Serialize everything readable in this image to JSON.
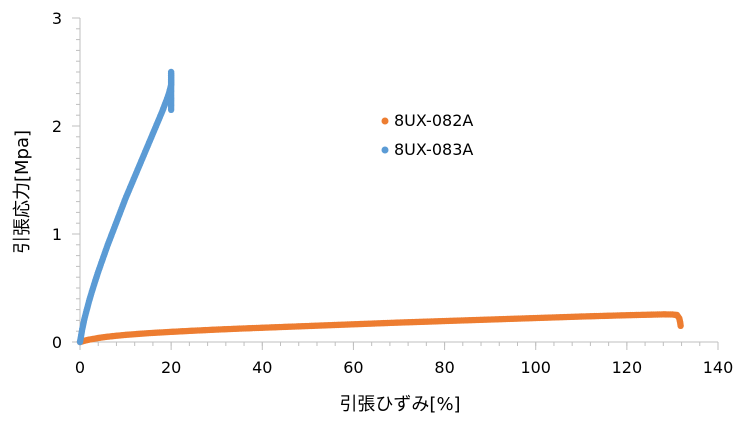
{
  "chart_data": {
    "type": "scatter",
    "title": "",
    "xlabel": "引張ひずみ[%]",
    "ylabel": "引張応力[Mpa]",
    "xlim": [
      0,
      140
    ],
    "ylim": [
      0,
      3
    ],
    "xticks": [
      0,
      20,
      40,
      60,
      80,
      100,
      120,
      140
    ],
    "xtick_labels": [
      "0",
      "20",
      "40",
      "60",
      "80",
      "100",
      "120",
      "140"
    ],
    "yticks": [
      0,
      1,
      2,
      3
    ],
    "ytick_labels": [
      "0",
      "1",
      "2",
      "3"
    ],
    "grid": false,
    "legend_position": "center",
    "series": [
      {
        "name": "8UX-082A",
        "color": "#ED7D31",
        "points": [
          [
            0,
            0
          ],
          [
            1,
            0.012
          ],
          [
            2,
            0.022
          ],
          [
            4,
            0.037
          ],
          [
            6,
            0.049
          ],
          [
            8,
            0.058
          ],
          [
            10,
            0.066
          ],
          [
            15,
            0.082
          ],
          [
            20,
            0.094
          ],
          [
            25,
            0.105
          ],
          [
            30,
            0.115
          ],
          [
            35,
            0.124
          ],
          [
            40,
            0.132
          ],
          [
            45,
            0.14
          ],
          [
            50,
            0.148
          ],
          [
            55,
            0.156
          ],
          [
            60,
            0.164
          ],
          [
            65,
            0.172
          ],
          [
            70,
            0.18
          ],
          [
            75,
            0.187
          ],
          [
            80,
            0.194
          ],
          [
            85,
            0.201
          ],
          [
            90,
            0.208
          ],
          [
            95,
            0.215
          ],
          [
            100,
            0.222
          ],
          [
            105,
            0.229
          ],
          [
            110,
            0.236
          ],
          [
            115,
            0.242
          ],
          [
            120,
            0.248
          ],
          [
            125,
            0.253
          ],
          [
            128,
            0.256
          ],
          [
            130,
            0.255
          ],
          [
            131,
            0.25
          ],
          [
            131.5,
            0.22
          ],
          [
            131.7,
            0.18
          ],
          [
            131.8,
            0.15
          ]
        ]
      },
      {
        "name": "8UX-083A",
        "color": "#5B9BD5",
        "points": [
          [
            0,
            0
          ],
          [
            0.5,
            0.12
          ],
          [
            1,
            0.22
          ],
          [
            2,
            0.38
          ],
          [
            3,
            0.52
          ],
          [
            4,
            0.65
          ],
          [
            5,
            0.77
          ],
          [
            6,
            0.89
          ],
          [
            7,
            1.0
          ],
          [
            8,
            1.11
          ],
          [
            9,
            1.22
          ],
          [
            10,
            1.33
          ],
          [
            11,
            1.43
          ],
          [
            12,
            1.53
          ],
          [
            13,
            1.63
          ],
          [
            14,
            1.73
          ],
          [
            15,
            1.83
          ],
          [
            16,
            1.93
          ],
          [
            17,
            2.03
          ],
          [
            18,
            2.13
          ],
          [
            19,
            2.24
          ],
          [
            19.5,
            2.3
          ],
          [
            20,
            2.38
          ],
          [
            20,
            2.45
          ],
          [
            20,
            2.5
          ],
          [
            20,
            2.35
          ],
          [
            20,
            2.28
          ],
          [
            20,
            2.22
          ],
          [
            20,
            2.15
          ]
        ]
      }
    ]
  }
}
